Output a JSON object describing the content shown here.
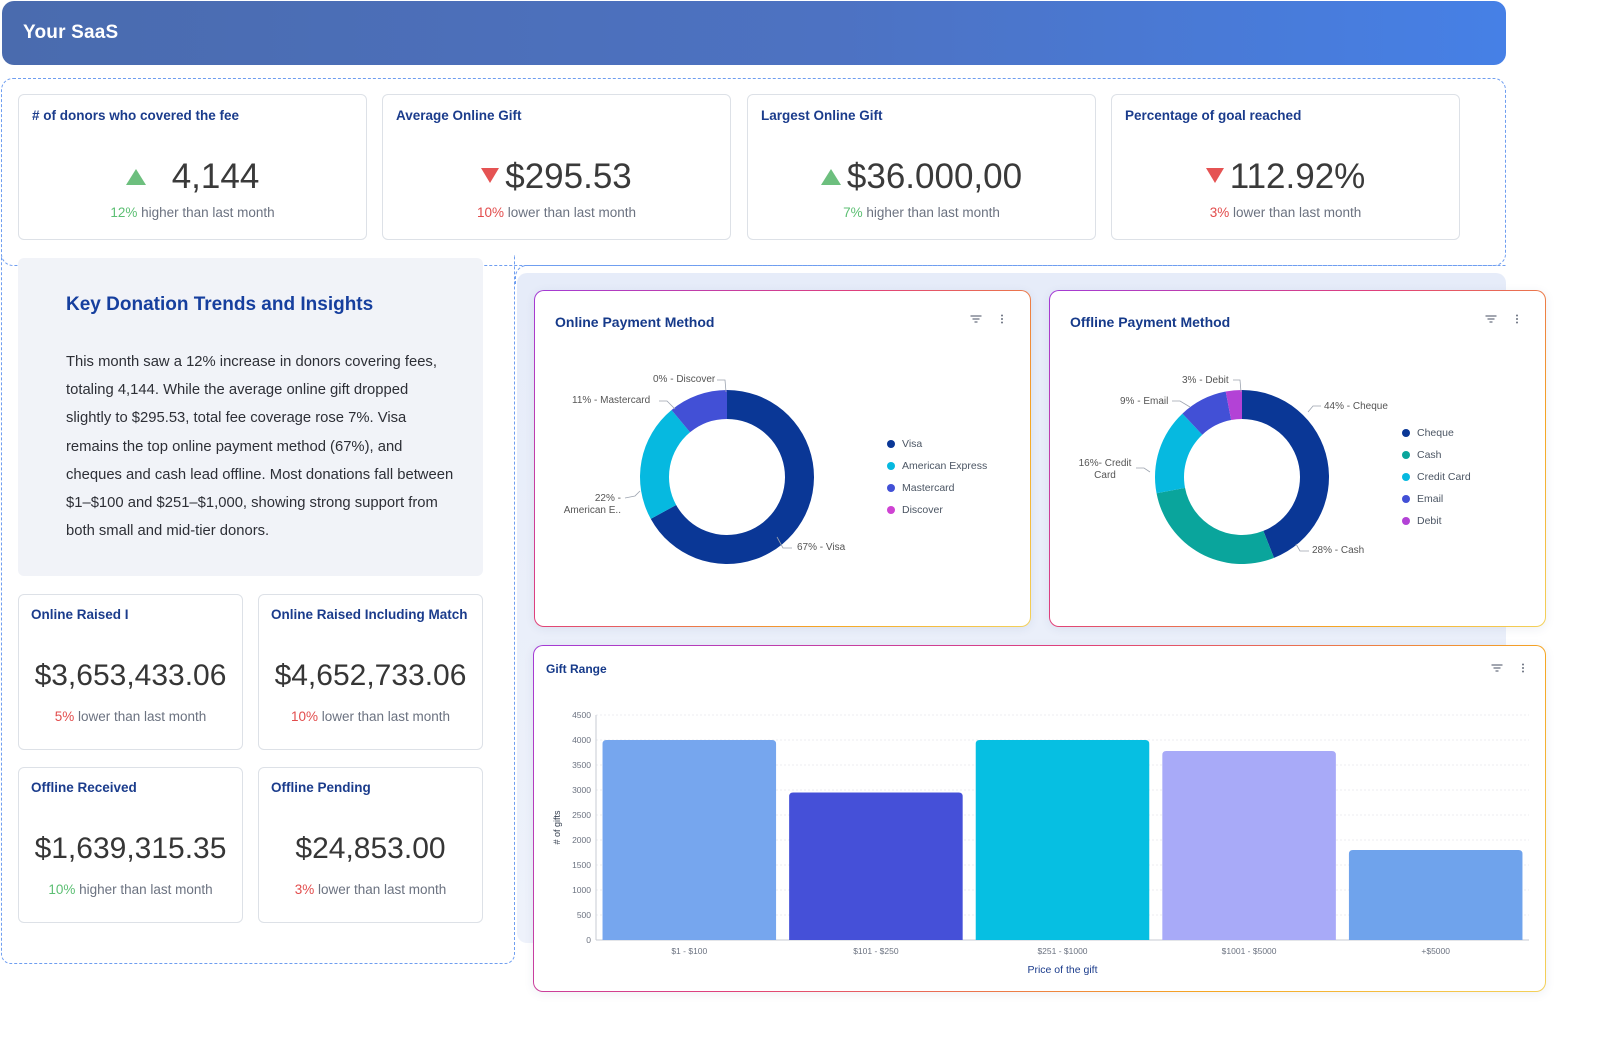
{
  "header": {
    "title": "Your SaaS"
  },
  "kpis": [
    {
      "title": "# of donors who covered the fee",
      "value": "4,144",
      "trend": "up",
      "pct": "12%",
      "text": " higher than last month"
    },
    {
      "title": "Average Online Gift",
      "value": "$295.53",
      "trend": "down",
      "pct": "10%",
      "text": " lower than last month"
    },
    {
      "title": "Largest Online Gift",
      "value": "$36.000,00",
      "trend": "up",
      "pct": "7%",
      "text": " higher than last month"
    },
    {
      "title": "Percentage of goal reached",
      "value": "112.92%",
      "trend": "down",
      "pct": "3%",
      "text": " lower than last month"
    }
  ],
  "insights": {
    "title": "Key Donation Trends and Insights",
    "body": "This month saw a 12% increase in donors covering fees, totaling 4,144. While the average online gift dropped slightly to $295.53, total fee coverage rose 7%. Visa remains the top online payment method (67%), and cheques and cash lead offline. Most donations fall between $1–$100 and $251–$1,000, showing strong support from both small and mid-tier donors."
  },
  "stats": [
    {
      "title": "Online Raised I",
      "value": "$3,653,433.06",
      "pct": "5%",
      "text": " lower than last month",
      "trend": "down"
    },
    {
      "title": "Online Raised Including Match",
      "value": "$4,652,733.06",
      "pct": "10%",
      "text": " lower than last month",
      "trend": "down"
    },
    {
      "title": "Offline Received",
      "value": "$1,639,315.35",
      "pct": "10%",
      "text": " higher than last month",
      "trend": "up"
    },
    {
      "title": "Offline Pending",
      "value": "$24,853.00",
      "pct": "3%",
      "text": " lower than last month",
      "trend": "down"
    }
  ],
  "icons": {
    "filter": "filter-icon",
    "more": "more-vertical-icon"
  },
  "colors": {
    "up": "#5cbf73",
    "down": "#e24c4c",
    "title": "#163a8a"
  },
  "chart_data": [
    {
      "type": "pie",
      "title": "Online Payment Method",
      "donut": true,
      "slices": [
        {
          "name": "Visa",
          "value": 67,
          "label": "67% - Visa",
          "color": "#0a3796"
        },
        {
          "name": "American Express",
          "value": 22,
          "label": "22% - American E..",
          "color": "#06b9e0"
        },
        {
          "name": "Mastercard",
          "value": 11,
          "label": "11% - Mastercard",
          "color": "#4250d6"
        },
        {
          "name": "Discover",
          "value": 0,
          "label": "0% - Discover",
          "color": "#cf43d3"
        }
      ],
      "legend": [
        "Visa",
        "American Express",
        "Mastercard",
        "Discover"
      ]
    },
    {
      "type": "pie",
      "title": "Offline Payment Method",
      "donut": true,
      "slices": [
        {
          "name": "Cheque",
          "value": 44,
          "label": "44% - Cheque",
          "color": "#0a3796"
        },
        {
          "name": "Cash",
          "value": 28,
          "label": "28% - Cash",
          "color": "#0aa59c"
        },
        {
          "name": "Credit Card",
          "value": 16,
          "label": "16%- Credit Card",
          "color": "#06b9e0"
        },
        {
          "name": "Email",
          "value": 9,
          "label": "9% - Email",
          "color": "#4250d6"
        },
        {
          "name": "Debit",
          "value": 3,
          "label": "3% - Debit",
          "color": "#b342d6"
        }
      ],
      "legend": [
        "Cheque",
        "Cash",
        "Credit Card",
        "Email",
        "Debit"
      ]
    },
    {
      "type": "bar",
      "title": "Gift Range",
      "categories": [
        "$1 - $100",
        "$101 - $250",
        "$251 - $1000",
        "$1001 - $5000",
        "+$5000"
      ],
      "values": [
        4000,
        2950,
        4000,
        3780,
        1800
      ],
      "colors": [
        "#76a6ee",
        "#4550d8",
        "#06bfe2",
        "#a8aaf8",
        "#6fa3ec"
      ],
      "xlabel": "Price of the gift",
      "ylabel": "# of gifts",
      "ylim": [
        0,
        4500
      ],
      "yticks": [
        0,
        500,
        1000,
        1500,
        2000,
        2500,
        3000,
        3500,
        4000,
        4500
      ],
      "grid": true
    }
  ]
}
